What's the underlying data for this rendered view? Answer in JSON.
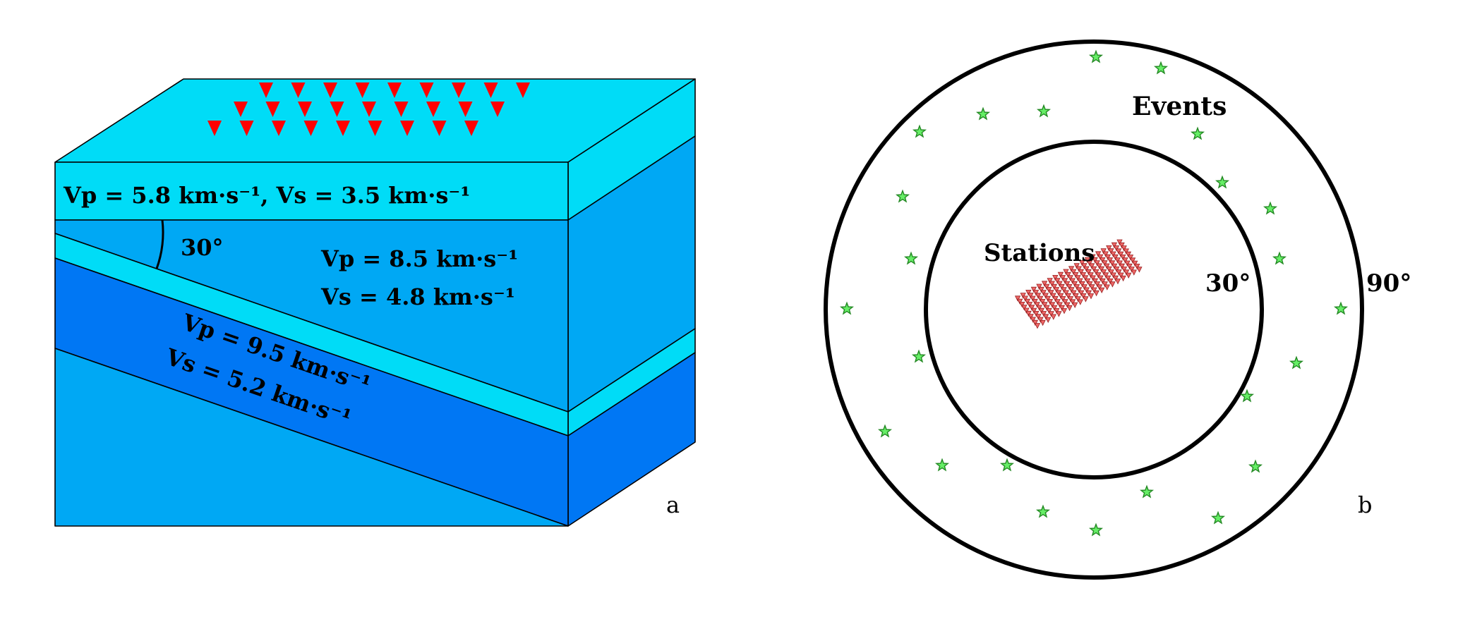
{
  "panel_a": {
    "letter": "a",
    "layer1_label": "Vp = 5.8 km·s⁻¹, Vs = 3.5 km·s⁻¹",
    "dip_angle_label": "30°",
    "mantle_vp": "Vp = 8.5 km·s⁻¹",
    "mantle_vs": "Vs = 4.8 km·s⁻¹",
    "slab_vp": "Vp = 9.5 km·s⁻¹",
    "slab_vs": "Vs = 5.2 km·s⁻¹",
    "colors": {
      "top_face": "#00dcf7",
      "crust": "#00dcf7",
      "mantle": "#00a8f4",
      "slab_crust": "#00dcf7",
      "slab": "#0077f4",
      "station_marker": "#ff0000"
    },
    "station_rows": [
      9,
      9,
      9
    ]
  },
  "panel_b": {
    "letter": "b",
    "events_label": "Events",
    "stations_label": "Stations",
    "inner_ring_label": "30°",
    "outer_ring_label": "90°",
    "colors": {
      "events_text": "#117711",
      "stations_text": "#ff0000",
      "star_fill": "#66ee66",
      "star_stroke": "#228822",
      "station_fill": "#ee6666",
      "station_stroke": "#992222"
    },
    "station_grid": {
      "rows": 10,
      "cols": 20
    }
  }
}
